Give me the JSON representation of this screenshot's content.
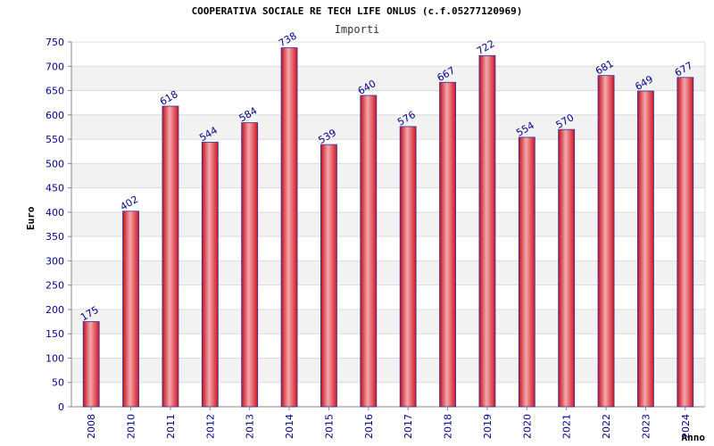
{
  "chart_data": {
    "type": "bar",
    "title": "COOPERATIVA SOCIALE RE TECH LIFE ONLUS (c.f.05277120969)",
    "subtitle": "Importi",
    "xlabel": "Anno",
    "ylabel": "Euro",
    "categories": [
      "2008",
      "2010",
      "2011",
      "2012",
      "2013",
      "2014",
      "2015",
      "2016",
      "2017",
      "2018",
      "2019",
      "2020",
      "2021",
      "2022",
      "2023",
      "2024"
    ],
    "values": [
      175,
      402,
      618,
      544,
      584,
      738,
      539,
      640,
      576,
      667,
      722,
      554,
      570,
      681,
      649,
      677
    ],
    "ylim": [
      0,
      750
    ],
    "yticks": [
      0,
      50,
      100,
      150,
      200,
      250,
      300,
      350,
      400,
      450,
      500,
      550,
      600,
      650,
      700,
      750
    ],
    "grid": true,
    "colors": {
      "bar": "#e8202a",
      "bar_highlight": "#f2a0a4",
      "bar_edge": "#3030a0",
      "text": "#00008b"
    }
  }
}
